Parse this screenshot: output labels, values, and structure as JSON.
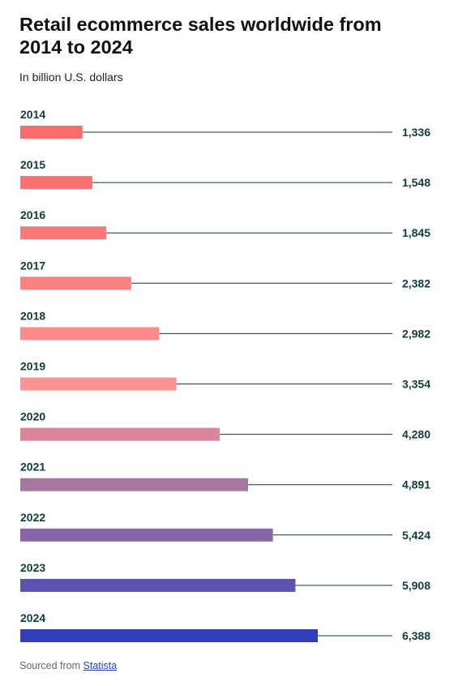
{
  "title": "Retail ecommerce sales worldwide from 2014 to 2024",
  "subtitle": "In billion U.S. dollars",
  "source": {
    "prefix": "Sourced from",
    "link": "Statista"
  },
  "colors": {
    "bars": [
      "#fa6b6b",
      "#fb7171",
      "#fb7878",
      "#fc8282",
      "#fd8b8b",
      "#fd9494",
      "#d9859a",
      "#a9769f",
      "#8766a8",
      "#5b52b0",
      "#3141bb"
    ],
    "leader_line": "#0f3d3a",
    "label_text": "#0f3d3a"
  },
  "chart_data": {
    "type": "bar",
    "orientation": "horizontal",
    "categories": [
      "2014",
      "2015",
      "2016",
      "2017",
      "2018",
      "2019",
      "2020",
      "2021",
      "2022",
      "2023",
      "2024"
    ],
    "values": [
      1336,
      1548,
      1845,
      2382,
      2982,
      3354,
      4280,
      4891,
      5424,
      5908,
      6388
    ],
    "value_labels": [
      "1,336",
      "1,548",
      "1,845",
      "2,382",
      "2,982",
      "3,354",
      "4,280",
      "4,891",
      "5,424",
      "5,908",
      "6,388"
    ],
    "xlim": [
      0,
      8000
    ],
    "title": "Retail ecommerce sales worldwide from 2014 to 2024",
    "subtitle": "In billion U.S. dollars",
    "grid": false,
    "legend": "none"
  }
}
